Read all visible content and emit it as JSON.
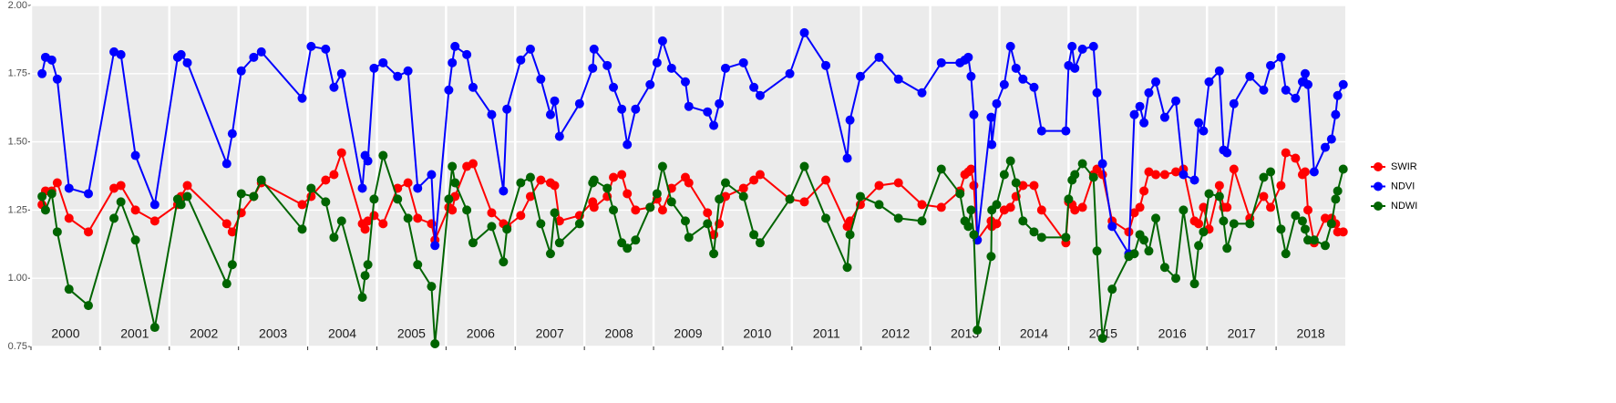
{
  "chart_data": {
    "type": "line",
    "x": [
      2000.16,
      2000.21,
      2000.3,
      2000.38,
      2000.55,
      2000.83,
      2001.2,
      2001.3,
      2001.51,
      2001.79,
      2002.12,
      2002.17,
      2002.26,
      2002.83,
      2002.91,
      2003.04,
      2003.22,
      2003.33,
      2003.92,
      2004.05,
      2004.26,
      2004.38,
      2004.49,
      2004.79,
      2004.83,
      2004.87,
      2004.96,
      2005.09,
      2005.3,
      2005.45,
      2005.59,
      2005.79,
      2005.84,
      2006.04,
      2006.09,
      2006.13,
      2006.3,
      2006.39,
      2006.66,
      2006.83,
      2006.88,
      2007.08,
      2007.22,
      2007.37,
      2007.51,
      2007.57,
      2007.64,
      2007.93,
      2008.12,
      2008.14,
      2008.33,
      2008.42,
      2008.54,
      2008.62,
      2008.74,
      2008.95,
      2009.05,
      2009.13,
      2009.26,
      2009.46,
      2009.51,
      2009.78,
      2009.87,
      2009.95,
      2010.04,
      2010.3,
      2010.45,
      2010.54,
      2010.97,
      2011.18,
      2011.49,
      2011.8,
      2011.84,
      2011.99,
      2012.26,
      2012.54,
      2012.88,
      2013.16,
      2013.43,
      2013.5,
      2013.55,
      2013.59,
      2013.63,
      2013.68,
      2013.88,
      2013.89,
      2013.96,
      2014.07,
      2014.16,
      2014.24,
      2014.34,
      2014.5,
      2014.61,
      2014.96,
      2015.0,
      2015.05,
      2015.09,
      2015.2,
      2015.36,
      2015.41,
      2015.49,
      2015.63,
      2015.87,
      2015.95,
      2016.03,
      2016.09,
      2016.16,
      2016.26,
      2016.39,
      2016.55,
      2016.66,
      2016.82,
      2016.88,
      2016.95,
      2017.03,
      2017.18,
      2017.24,
      2017.29,
      2017.39,
      2017.62,
      2017.82,
      2017.92,
      2018.07,
      2018.14,
      2018.28,
      2018.38,
      2018.42,
      2018.46,
      2018.55,
      2018.71,
      2018.8,
      2018.86,
      2018.89,
      2018.97
    ],
    "series": [
      {
        "name": "SWIR",
        "color": "#ff0000",
        "values": [
          1.27,
          1.32,
          1.32,
          1.35,
          1.22,
          1.17,
          1.33,
          1.34,
          1.25,
          1.21,
          1.27,
          1.3,
          1.34,
          1.2,
          1.17,
          1.24,
          1.3,
          1.35,
          1.27,
          1.3,
          1.36,
          1.38,
          1.46,
          1.2,
          1.18,
          1.21,
          1.23,
          1.2,
          1.33,
          1.35,
          1.22,
          1.2,
          1.14,
          1.26,
          1.25,
          1.3,
          1.41,
          1.42,
          1.24,
          1.2,
          1.19,
          1.23,
          1.3,
          1.36,
          1.35,
          1.34,
          1.21,
          1.23,
          1.28,
          1.26,
          1.3,
          1.37,
          1.38,
          1.31,
          1.25,
          1.26,
          1.29,
          1.25,
          1.33,
          1.37,
          1.35,
          1.24,
          1.16,
          1.2,
          1.3,
          1.33,
          1.36,
          1.38,
          1.29,
          1.28,
          1.36,
          1.19,
          1.21,
          1.27,
          1.34,
          1.35,
          1.27,
          1.26,
          1.32,
          1.38,
          1.39,
          1.4,
          1.34,
          1.14,
          1.21,
          1.19,
          1.2,
          1.25,
          1.26,
          1.3,
          1.34,
          1.34,
          1.25,
          1.13,
          1.28,
          1.27,
          1.25,
          1.26,
          1.38,
          1.4,
          1.38,
          1.21,
          1.17,
          1.24,
          1.26,
          1.32,
          1.39,
          1.38,
          1.38,
          1.39,
          1.4,
          1.21,
          1.2,
          1.26,
          1.18,
          1.34,
          1.26,
          1.26,
          1.4,
          1.22,
          1.3,
          1.26,
          1.34,
          1.46,
          1.44,
          1.38,
          1.39,
          1.25,
          1.13,
          1.22,
          1.22,
          1.2,
          1.17,
          1.17
        ]
      },
      {
        "name": "NDVI",
        "color": "#0000ff",
        "values": [
          1.75,
          1.81,
          1.8,
          1.73,
          1.33,
          1.31,
          1.83,
          1.82,
          1.45,
          1.27,
          1.81,
          1.82,
          1.79,
          1.42,
          1.53,
          1.76,
          1.81,
          1.83,
          1.66,
          1.85,
          1.84,
          1.7,
          1.75,
          1.33,
          1.45,
          1.43,
          1.77,
          1.79,
          1.74,
          1.76,
          1.33,
          1.38,
          1.12,
          1.69,
          1.79,
          1.85,
          1.82,
          1.7,
          1.6,
          1.32,
          1.62,
          1.8,
          1.84,
          1.73,
          1.6,
          1.65,
          1.52,
          1.64,
          1.77,
          1.84,
          1.78,
          1.7,
          1.62,
          1.49,
          1.62,
          1.71,
          1.79,
          1.87,
          1.77,
          1.72,
          1.63,
          1.61,
          1.56,
          1.64,
          1.77,
          1.79,
          1.7,
          1.67,
          1.75,
          1.9,
          1.78,
          1.44,
          1.58,
          1.74,
          1.81,
          1.73,
          1.68,
          1.79,
          1.79,
          1.8,
          1.81,
          1.74,
          1.6,
          1.14,
          1.59,
          1.49,
          1.64,
          1.71,
          1.85,
          1.77,
          1.73,
          1.7,
          1.54,
          1.54,
          1.78,
          1.85,
          1.77,
          1.84,
          1.85,
          1.68,
          1.42,
          1.19,
          1.09,
          1.6,
          1.63,
          1.57,
          1.68,
          1.72,
          1.59,
          1.65,
          1.38,
          1.36,
          1.57,
          1.54,
          1.72,
          1.76,
          1.47,
          1.46,
          1.64,
          1.74,
          1.69,
          1.78,
          1.81,
          1.69,
          1.66,
          1.72,
          1.75,
          1.71,
          1.39,
          1.48,
          1.51,
          1.6,
          1.67,
          1.71
        ]
      },
      {
        "name": "NDWI",
        "color": "#006400",
        "values": [
          1.3,
          1.25,
          1.31,
          1.17,
          0.96,
          0.9,
          1.22,
          1.28,
          1.14,
          0.82,
          1.29,
          1.27,
          1.3,
          0.98,
          1.05,
          1.31,
          1.3,
          1.36,
          1.18,
          1.33,
          1.28,
          1.15,
          1.21,
          0.93,
          1.01,
          1.05,
          1.29,
          1.45,
          1.29,
          1.22,
          1.05,
          0.97,
          0.76,
          1.29,
          1.41,
          1.35,
          1.25,
          1.13,
          1.19,
          1.06,
          1.18,
          1.35,
          1.37,
          1.2,
          1.09,
          1.24,
          1.13,
          1.2,
          1.35,
          1.36,
          1.33,
          1.25,
          1.13,
          1.11,
          1.14,
          1.26,
          1.31,
          1.41,
          1.28,
          1.21,
          1.15,
          1.2,
          1.09,
          1.29,
          1.35,
          1.3,
          1.16,
          1.13,
          1.29,
          1.41,
          1.22,
          1.04,
          1.16,
          1.3,
          1.27,
          1.22,
          1.21,
          1.4,
          1.31,
          1.21,
          1.19,
          1.25,
          1.16,
          0.81,
          1.08,
          1.25,
          1.27,
          1.38,
          1.43,
          1.35,
          1.21,
          1.17,
          1.15,
          1.15,
          1.29,
          1.36,
          1.38,
          1.42,
          1.37,
          1.1,
          0.78,
          0.96,
          1.08,
          1.09,
          1.16,
          1.14,
          1.1,
          1.22,
          1.04,
          1.0,
          1.25,
          0.98,
          1.12,
          1.17,
          1.31,
          1.3,
          1.21,
          1.11,
          1.2,
          1.2,
          1.37,
          1.39,
          1.18,
          1.09,
          1.23,
          1.21,
          1.18,
          1.14,
          1.14,
          1.12,
          1.2,
          1.29,
          1.32,
          1.4
        ]
      }
    ],
    "xlim": [
      2000,
      2019
    ],
    "xticks": [
      2000,
      2001,
      2002,
      2003,
      2004,
      2005,
      2006,
      2007,
      2008,
      2009,
      2010,
      2011,
      2012,
      2013,
      2014,
      2015,
      2016,
      2017,
      2018
    ],
    "ylim": [
      0.75,
      2.0
    ],
    "yticks": [
      0.75,
      {
        "value": 1,
        "label": "1.00"
      },
      1.25,
      {
        "value": 1.5,
        "label": "1.50"
      },
      1.75,
      {
        "value": 2,
        "label": "2.00"
      }
    ],
    "grid": true,
    "legend": "right"
  }
}
